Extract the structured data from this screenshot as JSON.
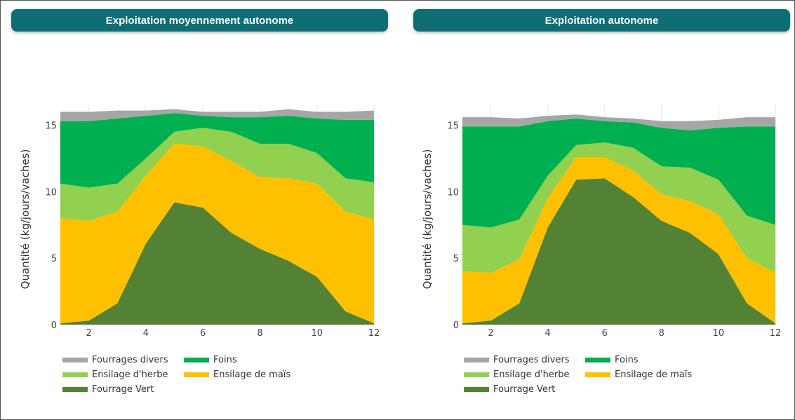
{
  "colors": {
    "header_bg": "#0e6d75",
    "fourrages_divers": "#a6a6a6",
    "foins": "#00b050",
    "ensilage_herbe": "#92d050",
    "ensilage_mais": "#ffc000",
    "fourrage_vert": "#548235"
  },
  "chart_data": [
    {
      "type": "area",
      "stacked": true,
      "title": "Exploitation moyennement autonome",
      "ylabel": "Quantité (kg/jours/vaches)",
      "xlabel": "",
      "x": [
        1,
        2,
        3,
        4,
        5,
        6,
        7,
        8,
        9,
        10,
        11,
        12
      ],
      "xticks": [
        "2",
        "4",
        "6",
        "8",
        "10",
        "12"
      ],
      "yticks": [
        "0",
        "5",
        "10",
        "15"
      ],
      "xlim": [
        1,
        12
      ],
      "ylim": [
        0,
        16.5
      ],
      "grid": true,
      "legend_position": "bottom-left",
      "series": [
        {
          "name": "Fourrage Vert",
          "color_key": "fourrage_vert",
          "values": [
            0.1,
            0.3,
            1.6,
            6.1,
            9.2,
            8.8,
            6.9,
            5.7,
            4.8,
            3.6,
            1.0,
            0.1
          ]
        },
        {
          "name": "Ensilage de maïs",
          "color_key": "ensilage_mais",
          "values": [
            7.9,
            7.5,
            6.9,
            5.1,
            4.4,
            4.6,
            5.4,
            5.4,
            6.2,
            7.0,
            7.5,
            7.8
          ]
        },
        {
          "name": "Ensilage d'herbe",
          "color_key": "ensilage_herbe",
          "values": [
            2.6,
            2.5,
            2.1,
            1.3,
            0.9,
            1.4,
            2.2,
            2.5,
            2.6,
            2.3,
            2.5,
            2.8
          ]
        },
        {
          "name": "Foins",
          "color_key": "foins",
          "values": [
            4.7,
            5.0,
            4.9,
            3.2,
            1.4,
            0.9,
            1.1,
            2.0,
            2.1,
            2.6,
            4.4,
            4.7
          ]
        },
        {
          "name": "Fourrages divers",
          "color_key": "fourrages_divers",
          "values": [
            0.7,
            0.7,
            0.6,
            0.4,
            0.3,
            0.3,
            0.4,
            0.4,
            0.5,
            0.5,
            0.6,
            0.7
          ]
        }
      ],
      "legend": [
        "Fourrages divers",
        "Foins",
        "Ensilage d'herbe",
        "Ensilage de maïs",
        "Fourrage Vert"
      ]
    },
    {
      "type": "area",
      "stacked": true,
      "title": "Exploitation autonome",
      "ylabel": "Quantité (kg/jours/vaches)",
      "xlabel": "",
      "x": [
        1,
        2,
        3,
        4,
        5,
        6,
        7,
        8,
        9,
        10,
        11,
        12
      ],
      "xticks": [
        "2",
        "4",
        "6",
        "8",
        "10",
        "12"
      ],
      "yticks": [
        "0",
        "5",
        "10",
        "15"
      ],
      "xlim": [
        1,
        12
      ],
      "ylim": [
        0,
        16.5
      ],
      "grid": true,
      "legend_position": "bottom-left",
      "series": [
        {
          "name": "Fourrage Vert",
          "color_key": "fourrage_vert",
          "values": [
            0.1,
            0.3,
            1.6,
            7.3,
            10.9,
            11.0,
            9.6,
            7.8,
            6.9,
            5.3,
            1.6,
            0.1
          ]
        },
        {
          "name": "Ensilage de maïs",
          "color_key": "ensilage_mais",
          "values": [
            3.9,
            3.6,
            3.3,
            2.2,
            1.7,
            1.6,
            2.0,
            2.0,
            2.4,
            3.0,
            3.4,
            3.8
          ]
        },
        {
          "name": "Ensilage d'herbe",
          "color_key": "ensilage_herbe",
          "values": [
            3.5,
            3.4,
            3.0,
            1.7,
            0.9,
            1.1,
            1.7,
            2.1,
            2.5,
            2.6,
            3.2,
            3.6
          ]
        },
        {
          "name": "Foins",
          "color_key": "foins",
          "values": [
            7.4,
            7.6,
            7.0,
            4.1,
            2.0,
            1.6,
            1.9,
            2.9,
            2.8,
            3.9,
            6.7,
            7.4
          ]
        },
        {
          "name": "Fourrages divers",
          "color_key": "fourrages_divers",
          "values": [
            0.7,
            0.7,
            0.6,
            0.4,
            0.3,
            0.3,
            0.3,
            0.5,
            0.7,
            0.6,
            0.7,
            0.7
          ]
        }
      ],
      "legend": [
        "Fourrages divers",
        "Foins",
        "Ensilage d'herbe",
        "Ensilage de maïs",
        "Fourrage Vert"
      ]
    }
  ]
}
